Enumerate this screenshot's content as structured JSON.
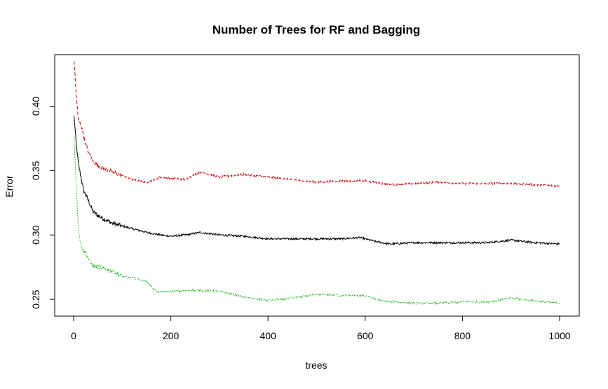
{
  "chart_data": {
    "type": "line",
    "title": "Number of Trees for RF and Bagging",
    "xlabel": "trees",
    "ylabel": "Error",
    "xlim": [
      0,
      1000
    ],
    "ylim": [
      0.237,
      0.44
    ],
    "xticks": [
      0,
      200,
      400,
      600,
      800,
      1000
    ],
    "yticks": [
      0.25,
      0.3,
      0.35,
      0.4
    ],
    "ytick_labels": [
      "0.25",
      "0.30",
      "0.35",
      "0.40"
    ],
    "grid": false,
    "legend": "none",
    "series": [
      {
        "color": "#000000",
        "dash": "solid",
        "points": [
          [
            1,
            0.392
          ],
          [
            5,
            0.372
          ],
          [
            10,
            0.355
          ],
          [
            15,
            0.345
          ],
          [
            20,
            0.335
          ],
          [
            25,
            0.331
          ],
          [
            30,
            0.327
          ],
          [
            40,
            0.318
          ],
          [
            50,
            0.315
          ],
          [
            60,
            0.313
          ],
          [
            80,
            0.309
          ],
          [
            100,
            0.307
          ],
          [
            120,
            0.305
          ],
          [
            150,
            0.302
          ],
          [
            180,
            0.3
          ],
          [
            200,
            0.299
          ],
          [
            230,
            0.3
          ],
          [
            260,
            0.302
          ],
          [
            300,
            0.3
          ],
          [
            350,
            0.299
          ],
          [
            400,
            0.297
          ],
          [
            450,
            0.297
          ],
          [
            500,
            0.297
          ],
          [
            550,
            0.297
          ],
          [
            590,
            0.298
          ],
          [
            620,
            0.295
          ],
          [
            650,
            0.293
          ],
          [
            700,
            0.294
          ],
          [
            750,
            0.294
          ],
          [
            800,
            0.294
          ],
          [
            850,
            0.294
          ],
          [
            900,
            0.296
          ],
          [
            950,
            0.294
          ],
          [
            1000,
            0.293
          ]
        ]
      },
      {
        "color": "#cc0000",
        "dash": "dashed",
        "points": [
          [
            1,
            0.436
          ],
          [
            5,
            0.41
          ],
          [
            10,
            0.388
          ],
          [
            15,
            0.386
          ],
          [
            20,
            0.378
          ],
          [
            25,
            0.37
          ],
          [
            30,
            0.365
          ],
          [
            40,
            0.357
          ],
          [
            50,
            0.354
          ],
          [
            60,
            0.352
          ],
          [
            80,
            0.349
          ],
          [
            100,
            0.346
          ],
          [
            120,
            0.343
          ],
          [
            150,
            0.341
          ],
          [
            180,
            0.345
          ],
          [
            200,
            0.344
          ],
          [
            230,
            0.343
          ],
          [
            260,
            0.349
          ],
          [
            300,
            0.345
          ],
          [
            350,
            0.347
          ],
          [
            400,
            0.345
          ],
          [
            450,
            0.343
          ],
          [
            500,
            0.341
          ],
          [
            550,
            0.342
          ],
          [
            600,
            0.342
          ],
          [
            650,
            0.339
          ],
          [
            700,
            0.34
          ],
          [
            750,
            0.341
          ],
          [
            800,
            0.34
          ],
          [
            850,
            0.34
          ],
          [
            900,
            0.34
          ],
          [
            950,
            0.339
          ],
          [
            1000,
            0.338
          ]
        ]
      },
      {
        "color": "#00aa00",
        "dash": "dotted",
        "points": [
          [
            1,
            0.376
          ],
          [
            5,
            0.34
          ],
          [
            10,
            0.305
          ],
          [
            15,
            0.292
          ],
          [
            20,
            0.288
          ],
          [
            25,
            0.286
          ],
          [
            30,
            0.282
          ],
          [
            40,
            0.276
          ],
          [
            50,
            0.275
          ],
          [
            60,
            0.274
          ],
          [
            80,
            0.272
          ],
          [
            100,
            0.268
          ],
          [
            120,
            0.267
          ],
          [
            150,
            0.264
          ],
          [
            170,
            0.256
          ],
          [
            200,
            0.256
          ],
          [
            230,
            0.257
          ],
          [
            260,
            0.257
          ],
          [
            300,
            0.256
          ],
          [
            350,
            0.252
          ],
          [
            400,
            0.249
          ],
          [
            450,
            0.251
          ],
          [
            500,
            0.254
          ],
          [
            550,
            0.253
          ],
          [
            600,
            0.253
          ],
          [
            630,
            0.249
          ],
          [
            700,
            0.247
          ],
          [
            750,
            0.247
          ],
          [
            800,
            0.248
          ],
          [
            850,
            0.248
          ],
          [
            900,
            0.251
          ],
          [
            950,
            0.249
          ],
          [
            1000,
            0.247
          ]
        ]
      }
    ]
  }
}
